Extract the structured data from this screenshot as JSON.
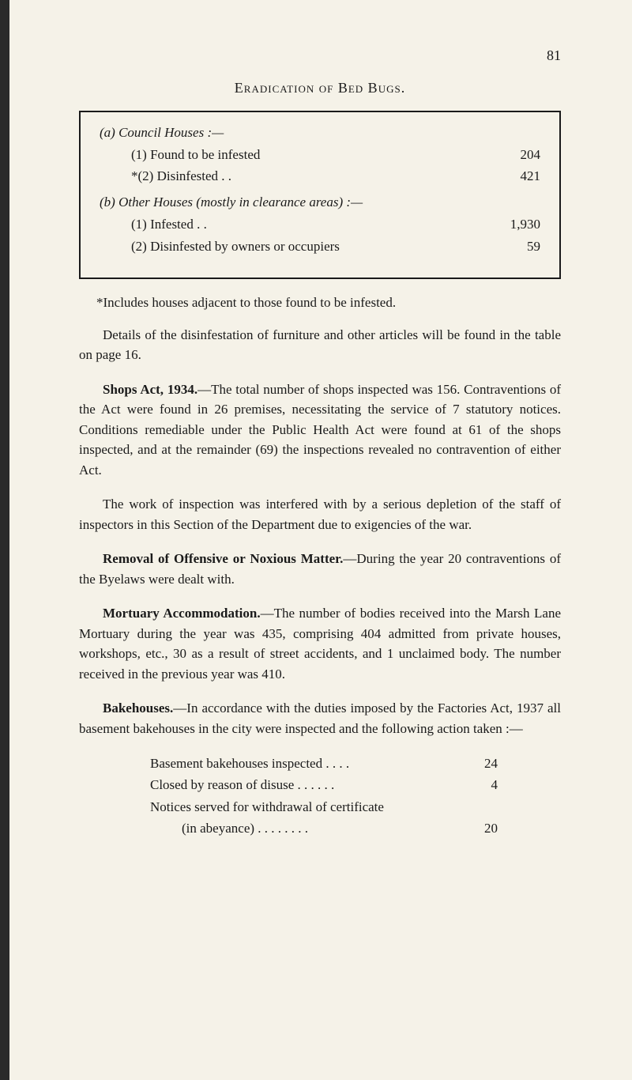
{
  "page_number": "81",
  "heading": "Eradication of Bed Bugs.",
  "table": {
    "section_a": {
      "header": "(a) Council Houses :—",
      "rows": [
        {
          "label": "(1) Found to be infested",
          "dots": ". .       . .        . .",
          "value": "204"
        },
        {
          "label": "*(2) Disinfested . .",
          "dots": ". .       . .       . .        . .",
          "value": "421"
        }
      ]
    },
    "section_b": {
      "header": "(b) Other Houses (mostly in clearance areas) :—",
      "rows": [
        {
          "label": "(1) Infested         . .",
          "dots": ". .       . .       . .        . .",
          "value": "1,930"
        },
        {
          "label": "(2) Disinfested by owners or occupiers",
          "dots": ". .",
          "value": "59"
        }
      ]
    }
  },
  "footnote": "*Includes houses adjacent to those found to be infested.",
  "para1": "Details of the disinfestation of furniture and other articles will be found in the table on page 16.",
  "para2_bold": "Shops Act, 1934.",
  "para2": "—The total number of shops inspected was 156. Contraventions of the Act were found in 26 premises, necessitating the service of 7 statutory notices. Conditions remediable under the Public Health Act were found at 61 of the shops inspected, and at the remainder (69) the inspections revealed no contravention of either Act.",
  "para3": "The work of inspection was interfered with by a serious depletion of the staff of inspectors in this Section of the Department due to exigencies of the war.",
  "para4_bold": "Removal of Offensive or Noxious Matter.",
  "para4": "—During the year 20 contraventions of the Byelaws were dealt with.",
  "para5_bold": "Mortuary Accommodation.",
  "para5": "—The number of bodies received into the Marsh Lane Mortuary during the year was 435, comprising 404 admitted from private houses, workshops, etc., 30 as a result of street accidents, and 1 unclaimed body. The number received in the previous year was 410.",
  "para6_bold": "Bakehouses.",
  "para6": "—In accordance with the duties imposed by the Factories Act, 1937 all basement bakehouses in the city were inspected and the following action taken :—",
  "list": {
    "rows": [
      {
        "label": "Basement bakehouses inspected        . .      . .",
        "value": "24"
      },
      {
        "label": "Closed by reason of disuse       . .       . .       . .",
        "value": "4"
      },
      {
        "label": "Notices served for withdrawal of certificate",
        "value": ""
      },
      {
        "label_indent": "(in abeyance)           . .       . .      . .       . .",
        "value": "20"
      }
    ]
  },
  "colors": {
    "background": "#f5f2e8",
    "text": "#1a1a1a",
    "border": "#1a1a1a"
  }
}
